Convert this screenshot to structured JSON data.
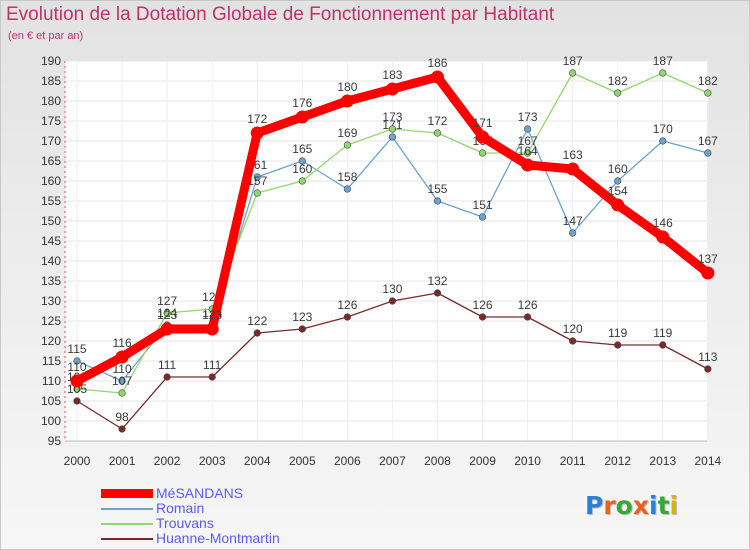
{
  "title": "Evolution de la Dotation Globale de Fonctionnement par Habitant",
  "subtitle": "(en € et par an)",
  "logo": {
    "text": "Proxiti",
    "letter_colors": [
      "#2d7fd1",
      "#e8621c",
      "#3aa63a",
      "#e8621c",
      "#2d7fd1",
      "#3aa63a",
      "#d9b400"
    ]
  },
  "chart_data": {
    "type": "line",
    "title": "Evolution de la Dotation Globale de Fonctionnement par Habitant",
    "ylabel": "(en € et par an)",
    "xlabel": "",
    "ylim": [
      95,
      190
    ],
    "y_ticks": [
      95,
      100,
      105,
      110,
      115,
      120,
      125,
      130,
      135,
      140,
      145,
      150,
      155,
      160,
      165,
      170,
      175,
      180,
      185,
      190
    ],
    "categories": [
      "2000",
      "2001",
      "2002",
      "2003",
      "2004",
      "2005",
      "2006",
      "2007",
      "2008",
      "2009",
      "2010",
      "2011",
      "2012",
      "2013",
      "2014"
    ],
    "legend_position": "bottom-left",
    "series": [
      {
        "name": "MéSANDANS",
        "color": "#ff0000",
        "label_color": "#5b5bef",
        "emphasis": true,
        "values": [
          110,
          116,
          123,
          123,
          172,
          176,
          180,
          183,
          186,
          171,
          164,
          163,
          154,
          146,
          137
        ]
      },
      {
        "name": "Romain",
        "color": "#6ba3d0",
        "label_color": "#5b5bef",
        "emphasis": false,
        "values": [
          115,
          110,
          124,
          124,
          161,
          165,
          158,
          171,
          155,
          151,
          173,
          147,
          160,
          170,
          167
        ]
      },
      {
        "name": "Trouvans",
        "color": "#8ed96b",
        "label_color": "#5b5bef",
        "emphasis": false,
        "values": [
          108,
          107,
          127,
          128,
          157,
          160,
          169,
          173,
          172,
          167,
          167,
          187,
          182,
          187,
          182
        ]
      },
      {
        "name": "Huanne-Montmartin",
        "color": "#7a2a2a",
        "label_color": "#5b5bef",
        "emphasis": false,
        "values": [
          105,
          98,
          111,
          111,
          122,
          123,
          126,
          130,
          132,
          126,
          126,
          120,
          119,
          119,
          113
        ]
      }
    ]
  }
}
